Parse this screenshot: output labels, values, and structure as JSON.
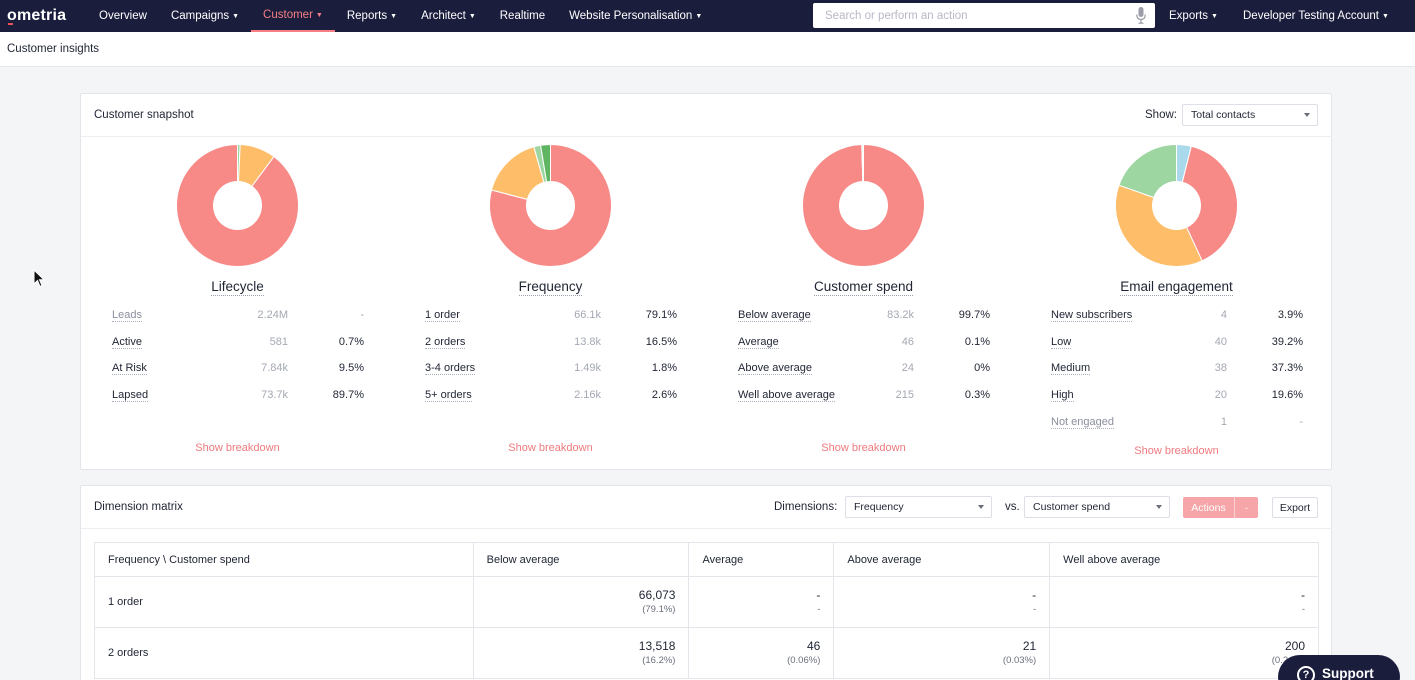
{
  "nav": {
    "logo": "ometria",
    "items": [
      {
        "label": "Overview",
        "dropdown": false,
        "active": false
      },
      {
        "label": "Campaigns",
        "dropdown": true,
        "active": false
      },
      {
        "label": "Customer",
        "dropdown": true,
        "active": true
      },
      {
        "label": "Reports",
        "dropdown": true,
        "active": false
      },
      {
        "label": "Architect",
        "dropdown": true,
        "active": false
      },
      {
        "label": "Realtime",
        "dropdown": false,
        "active": false
      },
      {
        "label": "Website Personalisation",
        "dropdown": true,
        "active": false
      }
    ],
    "search_placeholder": "Search or perform an action",
    "exports_label": "Exports",
    "account_label": "Developer Testing Account"
  },
  "page": {
    "title": "Customer insights"
  },
  "snapshot": {
    "title": "Customer snapshot",
    "show_label": "Show:",
    "show_value": "Total contacts",
    "breakdown_label": "Show breakdown",
    "columns": [
      {
        "title": "Lifecycle",
        "rows": [
          {
            "name": "Leads",
            "count": "2.24M",
            "pct": "-",
            "muted": true
          },
          {
            "name": "Active",
            "count": "581",
            "pct": "0.7%",
            "muted": false
          },
          {
            "name": "At Risk",
            "count": "7.84k",
            "pct": "9.5%",
            "muted": false
          },
          {
            "name": "Lapsed",
            "count": "73.7k",
            "pct": "89.7%",
            "muted": false
          }
        ],
        "slices": [
          {
            "value": 0.7,
            "color": "#9dd6a0"
          },
          {
            "value": 9.5,
            "color": "#fdbd69"
          },
          {
            "value": 89.7,
            "color": "#f78a87"
          }
        ]
      },
      {
        "title": "Frequency",
        "rows": [
          {
            "name": "1 order",
            "count": "66.1k",
            "pct": "79.1%",
            "muted": false
          },
          {
            "name": "2 orders",
            "count": "13.8k",
            "pct": "16.5%",
            "muted": false
          },
          {
            "name": "3-4 orders",
            "count": "1.49k",
            "pct": "1.8%",
            "muted": false
          },
          {
            "name": "5+ orders",
            "count": "2.16k",
            "pct": "2.6%",
            "muted": false
          }
        ],
        "slices": [
          {
            "value": 79.1,
            "color": "#f78a87"
          },
          {
            "value": 16.5,
            "color": "#fdbd69"
          },
          {
            "value": 1.8,
            "color": "#9dd6a0"
          },
          {
            "value": 2.6,
            "color": "#5fb561"
          }
        ]
      },
      {
        "title": "Customer spend",
        "rows": [
          {
            "name": "Below average",
            "count": "83.2k",
            "pct": "99.7%",
            "muted": false
          },
          {
            "name": "Average",
            "count": "46",
            "pct": "0.1%",
            "muted": false
          },
          {
            "name": "Above average",
            "count": "24",
            "pct": "0%",
            "muted": false
          },
          {
            "name": "Well above average",
            "count": "215",
            "pct": "0.3%",
            "muted": false
          }
        ],
        "slices": [
          {
            "value": 99.7,
            "color": "#f78a87"
          },
          {
            "value": 0.1,
            "color": "#fdbd69"
          },
          {
            "value": 0.05,
            "color": "#9dd6a0"
          },
          {
            "value": 0.3,
            "color": "#5fb561"
          }
        ]
      },
      {
        "title": "Email engagement",
        "rows": [
          {
            "name": "New subscribers",
            "count": "4",
            "pct": "3.9%",
            "muted": false
          },
          {
            "name": "Low",
            "count": "40",
            "pct": "39.2%",
            "muted": false
          },
          {
            "name": "Medium",
            "count": "38",
            "pct": "37.3%",
            "muted": false
          },
          {
            "name": "High",
            "count": "20",
            "pct": "19.6%",
            "muted": false
          },
          {
            "name": "Not engaged",
            "count": "1",
            "pct": "-",
            "muted": true
          }
        ],
        "slices": [
          {
            "value": 3.9,
            "color": "#aad9ec"
          },
          {
            "value": 39.2,
            "color": "#f78a87"
          },
          {
            "value": 37.3,
            "color": "#fdbd69"
          },
          {
            "value": 19.6,
            "color": "#9dd6a0"
          }
        ]
      }
    ]
  },
  "matrix": {
    "title": "Dimension matrix",
    "dimensions_label": "Dimensions:",
    "dim1": "Frequency",
    "vs_label": "vs.",
    "dim2": "Customer spend",
    "actions_label": "Actions",
    "actions_split": "-",
    "export_label": "Export",
    "headers": [
      "Frequency \\ Customer spend",
      "Below average",
      "Average",
      "Above average",
      "Well above average"
    ],
    "rows": [
      {
        "name": "1 order",
        "cells": [
          {
            "v": "66,073",
            "p": "(79.1%)"
          },
          {
            "v": "-",
            "p": "-"
          },
          {
            "v": "-",
            "p": "-"
          },
          {
            "v": "-",
            "p": "-"
          }
        ]
      },
      {
        "name": "2 orders",
        "cells": [
          {
            "v": "13,518",
            "p": "(16.2%)"
          },
          {
            "v": "46",
            "p": "(0.06%)"
          },
          {
            "v": "21",
            "p": "(0.03%)"
          },
          {
            "v": "200",
            "p": "(0.24%)"
          }
        ]
      }
    ]
  },
  "support": {
    "label": "Support"
  },
  "colors": {
    "nav_bg": "#1b1d3d",
    "accent": "#f57f83"
  }
}
